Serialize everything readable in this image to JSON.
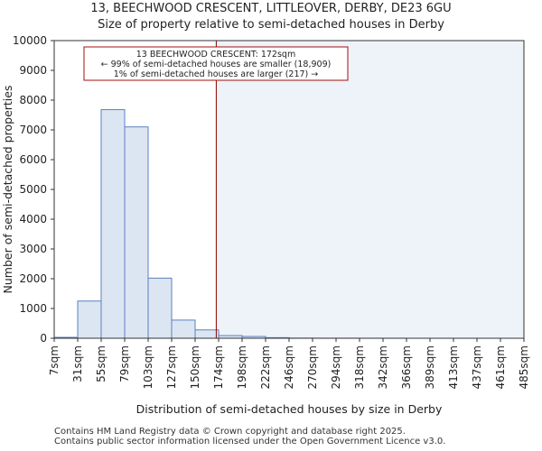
{
  "chart_data": {
    "type": "bar",
    "title_line1": "13, BEECHWOOD CRESCENT, LITTLEOVER, DERBY, DE23 6GU",
    "title_line2": "Size of property relative to semi-detached houses in Derby",
    "xlabel": "Distribution of semi-detached houses by size in Derby",
    "ylabel": "Number of semi-detached properties",
    "ylim": [
      0,
      10000
    ],
    "yticks": [
      0,
      1000,
      2000,
      3000,
      4000,
      5000,
      6000,
      7000,
      8000,
      9000,
      10000
    ],
    "categories": [
      "7sqm",
      "31sqm",
      "55sqm",
      "79sqm",
      "103sqm",
      "127sqm",
      "150sqm",
      "174sqm",
      "198sqm",
      "222sqm",
      "246sqm",
      "270sqm",
      "294sqm",
      "318sqm",
      "342sqm",
      "366sqm",
      "389sqm",
      "413sqm",
      "437sqm",
      "461sqm",
      "485sqm"
    ],
    "values": [
      30,
      1250,
      7680,
      7100,
      2020,
      610,
      280,
      90,
      60,
      20,
      5,
      3,
      2,
      1,
      1,
      0,
      0,
      0,
      0,
      0,
      0
    ],
    "marker_value_sqm": 172,
    "marker_index": 6.9,
    "annotation": {
      "line1": "13 BEECHWOOD CRESCENT: 172sqm",
      "line2": "← 99% of semi-detached houses are smaller (18,909)",
      "line3": "1% of semi-detached houses are larger (217) →"
    },
    "colors": {
      "bar_fill": "#dce6f3",
      "bar_edge": "#5b7fbf",
      "highlight_bg": "#eef2f9",
      "marker": "#8b0000",
      "annotation_border": "#a01010"
    }
  },
  "footer": {
    "line1": "Contains HM Land Registry data © Crown copyright and database right 2025.",
    "line2": "Contains public sector information licensed under the Open Government Licence v3.0."
  }
}
